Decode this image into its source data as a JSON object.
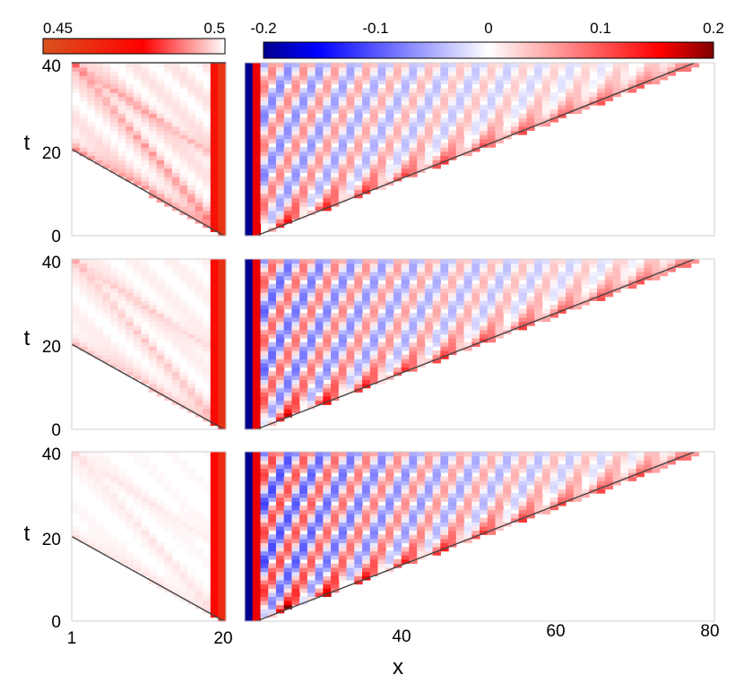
{
  "chart_data": {
    "type": "heatmap",
    "title": "",
    "xlabel": "x",
    "ylabel": "t",
    "colorbars": [
      {
        "ticks": [
          "0.45",
          "0.5"
        ],
        "range": [
          0.45,
          0.5
        ],
        "colors": [
          "#d9531e",
          "#ff0000",
          "#ffffff"
        ]
      },
      {
        "ticks": [
          "-0.2",
          "-0.1",
          "0",
          "0.1",
          "0.2"
        ],
        "range": [
          -0.2,
          0.2
        ],
        "colors": [
          "#00008f",
          "#0000ff",
          "#ffffff",
          "#ff0000",
          "#800000"
        ]
      }
    ],
    "left_panels": {
      "x_range": [
        1,
        20
      ],
      "x_ticks": [
        "1",
        "20"
      ],
      "t_range": [
        0,
        40
      ],
      "t_ticks": [
        "0",
        "20",
        "40"
      ],
      "boundary": {
        "t_at_x1": 20,
        "t_at_x20": 0
      },
      "edge_column_value": 0.46
    },
    "right_panels": {
      "x_range": [
        21,
        80
      ],
      "x_ticks": [
        "40",
        "60",
        "80"
      ],
      "t_range": [
        0,
        40
      ],
      "boundary": {
        "t_at_x22": 0,
        "t_at_x78": 40
      },
      "first_column_value": -0.2,
      "second_column_value": 0.18,
      "oscillation_period_x": 4
    },
    "rows": [
      {
        "left_profile": "strong",
        "right_amplitude": 0.08
      },
      {
        "left_profile": "medium",
        "right_amplitude": 0.1
      },
      {
        "left_profile": "weak",
        "right_amplitude": 0.12
      }
    ]
  }
}
